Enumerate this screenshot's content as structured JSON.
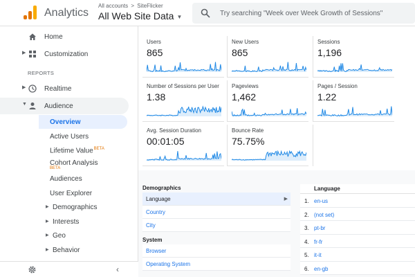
{
  "header": {
    "app_name": "Analytics",
    "breadcrumb": {
      "accounts": "All accounts",
      "separator": ">",
      "account": "SiteFlicker"
    },
    "property": "All Web Site Data",
    "search_placeholder": "Try searching \"Week over Week Growth of Sessions\"",
    "logo_colors": [
      "#f9ab00",
      "#e37400",
      "#e37400"
    ]
  },
  "sidebar": {
    "home": "Home",
    "customization": "Customization",
    "reports_label": "REPORTS",
    "realtime": "Realtime",
    "audience": "Audience",
    "audience_items": [
      {
        "label": "Overview"
      },
      {
        "label": "Active Users"
      },
      {
        "label": "Lifetime Value",
        "badge": "BETA"
      },
      {
        "label": "Cohort Analysis",
        "badge": "BETA"
      },
      {
        "label": "Audiences"
      },
      {
        "label": "User Explorer"
      },
      {
        "label": "Demographics"
      },
      {
        "label": "Interests"
      },
      {
        "label": "Geo"
      },
      {
        "label": "Behavior"
      }
    ]
  },
  "metrics": [
    {
      "label": "Users",
      "value": "865"
    },
    {
      "label": "New Users",
      "value": "865"
    },
    {
      "label": "Sessions",
      "value": "1,196"
    },
    {
      "label": "Number of Sessions per User",
      "value": "1.38"
    },
    {
      "label": "Pageviews",
      "value": "1,462"
    },
    {
      "label": "Pages / Session",
      "value": "1.22"
    },
    {
      "label": "Avg. Session Duration",
      "value": "00:01:05"
    },
    {
      "label": "Bounce Rate",
      "value": "75.75%"
    }
  ],
  "demographics": {
    "title": "Demographics",
    "items": [
      "Language",
      "Country",
      "City"
    ],
    "system_title": "System",
    "system_items": [
      "Browser",
      "Operating System"
    ]
  },
  "language": {
    "title": "Language",
    "rows": [
      {
        "num": "1.",
        "value": "en-us"
      },
      {
        "num": "2.",
        "value": "(not set)"
      },
      {
        "num": "3.",
        "value": "pt-br"
      },
      {
        "num": "4.",
        "value": "fr-fr"
      },
      {
        "num": "5.",
        "value": "it-it"
      },
      {
        "num": "6.",
        "value": "en-gb"
      }
    ]
  },
  "colors": {
    "accent": "#1a73e8",
    "sparkline": "#1e88e5",
    "beta": "#e37400"
  }
}
